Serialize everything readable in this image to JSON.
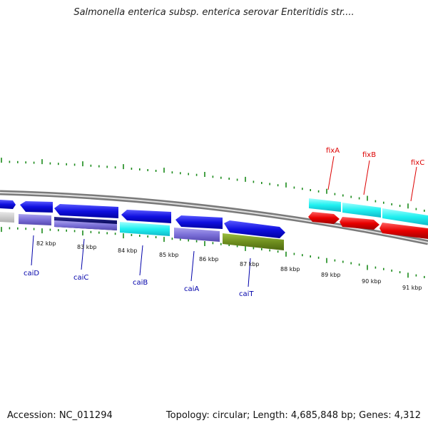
{
  "title": "Salmonella enterica subsp. enterica serovar Enteritidis str....",
  "footer": {
    "accession": "Accession: NC_011294",
    "summary": "Topology: circular; Length: 4,685,848 bp; Genes: 4,312"
  },
  "colors": {
    "tick": "#1a8a1a",
    "blue_gene": "#1010e0",
    "lilac_gene": "#7b70d8",
    "navy_gene": "#0a0a60",
    "cyan_gene": "#20f0f0",
    "olive_gene": "#6f8f1f",
    "red_gene": "#e80000",
    "gray_gene": "#c8c8c8",
    "label_blue": "#0000aa",
    "label_red": "#dd0000"
  },
  "scale_labels": [
    "82 kbp",
    "83 kbp",
    "84 kbp",
    "85 kbp",
    "86 kbp",
    "87 kbp",
    "88 kbp",
    "89 kbp",
    "90 kbp",
    "91 kbp"
  ],
  "gene_labels": [
    {
      "name": "caiD",
      "color": "label_blue",
      "side": "below"
    },
    {
      "name": "caiC",
      "color": "label_blue",
      "side": "below"
    },
    {
      "name": "caiB",
      "color": "label_blue",
      "side": "below"
    },
    {
      "name": "caiA",
      "color": "label_blue",
      "side": "below"
    },
    {
      "name": "caiT",
      "color": "label_blue",
      "side": "below"
    },
    {
      "name": "fixA",
      "color": "label_red",
      "side": "above"
    },
    {
      "name": "fixB",
      "color": "label_red",
      "side": "above"
    },
    {
      "name": "fixC",
      "color": "label_red",
      "side": "above"
    }
  ]
}
